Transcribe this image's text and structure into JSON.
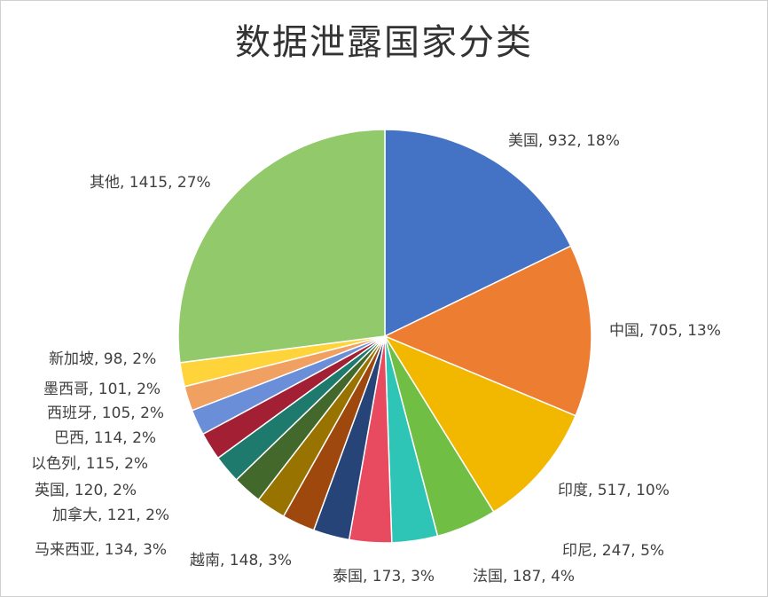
{
  "chart_data": {
    "type": "pie",
    "title": "数据泄露国家分类",
    "slices": [
      {
        "name": "美国",
        "value": 932,
        "percent": "18%",
        "color": "#4472C4"
      },
      {
        "name": "中国",
        "value": 705,
        "percent": "13%",
        "color": "#ED7D31"
      },
      {
        "name": "印度",
        "value": 517,
        "percent": "10%",
        "color": "#F2B800"
      },
      {
        "name": "印尼",
        "value": 247,
        "percent": "5%",
        "color": "#70BF44"
      },
      {
        "name": "法国",
        "value": 187,
        "percent": "4%",
        "color": "#2EC4B6"
      },
      {
        "name": "泰国",
        "value": 173,
        "percent": "3%",
        "color": "#E84A5F"
      },
      {
        "name": "越南",
        "value": 148,
        "percent": "3%",
        "color": "#264478"
      },
      {
        "name": "马来西亚",
        "value": 134,
        "percent": "3%",
        "color": "#9E480E"
      },
      {
        "name": "加拿大",
        "value": 121,
        "percent": "2%",
        "color": "#997300"
      },
      {
        "name": "英国",
        "value": 120,
        "percent": "2%",
        "color": "#43682B"
      },
      {
        "name": "以色列",
        "value": 115,
        "percent": "2%",
        "color": "#1F7A6E"
      },
      {
        "name": "巴西",
        "value": 114,
        "percent": "2%",
        "color": "#A31F34"
      },
      {
        "name": "西班牙",
        "value": 105,
        "percent": "2%",
        "color": "#6A8FD8"
      },
      {
        "name": "墨西哥",
        "value": 101,
        "percent": "2%",
        "color": "#F0A060"
      },
      {
        "name": "新加坡",
        "value": 98,
        "percent": "2%",
        "color": "#FFD43B"
      },
      {
        "name": "其他",
        "value": 1415,
        "percent": "27%",
        "color": "#92C96A"
      }
    ]
  }
}
